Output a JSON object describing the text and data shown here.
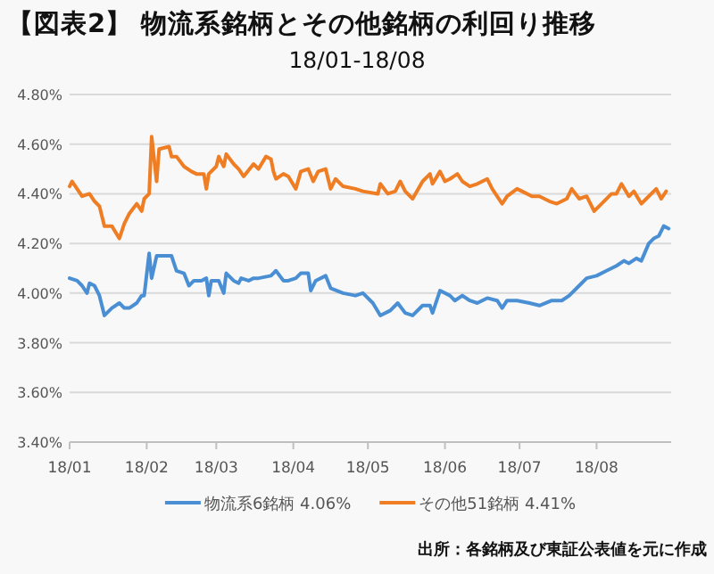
{
  "chart_data": {
    "type": "line",
    "title": "【図表2】 物流系銘柄とその他銘柄の利回り推移",
    "subtitle": "18/01-18/08",
    "annotations": [
      "出所：各銘柄及び東証公表値を元に作成"
    ],
    "xlim": [
      "--01-01",
      "--08-31"
    ],
    "xticks": [
      {
        "value": "--01-01",
        "label": "18/01"
      },
      {
        "value": "--02-01",
        "label": "18/02"
      },
      {
        "value": "--03-01",
        "label": "18/03"
      },
      {
        "value": "--04-01",
        "label": "18/04"
      },
      {
        "value": "--05-01",
        "label": "18/05"
      },
      {
        "value": "--06-01",
        "label": "18/06"
      },
      {
        "value": "--07-01",
        "label": "18/07"
      },
      {
        "value": "--08-01",
        "label": "18/08"
      }
    ],
    "ylim": [
      3.4,
      4.8
    ],
    "yticks": [
      {
        "value": 3.4,
        "label": "3.40%"
      },
      {
        "value": 3.6,
        "label": "3.60%"
      },
      {
        "value": 3.8,
        "label": "3.80%"
      },
      {
        "value": 4.0,
        "label": "4.00%"
      },
      {
        "value": 4.2,
        "label": "4.20%"
      },
      {
        "value": 4.4,
        "label": "4.40%"
      },
      {
        "value": 4.6,
        "label": "4.60%"
      },
      {
        "value": 4.8,
        "label": "4.80%"
      }
    ],
    "grid": "y",
    "legend": "bottom",
    "series": [
      {
        "name": "物流系6銘柄 4.06%",
        "color": "#4a8fd4",
        "x": [
          "--01-01",
          "--01-04",
          "--01-06",
          "--01-08",
          "--01-09",
          "--01-11",
          "--01-13",
          "--01-15",
          "--01-18",
          "--01-21",
          "--01-23",
          "--01-25",
          "--01-28",
          "--01-30",
          "--01-31",
          "--02-02",
          "--02-03",
          "--02-05",
          "--02-07",
          "--02-11",
          "--02-13",
          "--02-16",
          "--02-18",
          "--02-20",
          "--02-23",
          "--02-25",
          "--02-26",
          "--02-27",
          "--03-02",
          "--03-04",
          "--03-05",
          "--03-08",
          "--03-10",
          "--03-11",
          "--03-14",
          "--03-16",
          "--03-18",
          "--03-23",
          "--03-25",
          "--03-28",
          "--03-30",
          "--04-02",
          "--04-04",
          "--04-07",
          "--04-08",
          "--04-10",
          "--04-14",
          "--04-16",
          "--04-21",
          "--04-26",
          "--04-29",
          "--05-03",
          "--05-06",
          "--05-10",
          "--05-13",
          "--05-16",
          "--05-19",
          "--05-23",
          "--05-26",
          "--05-27",
          "--05-30",
          "--06-03",
          "--06-05",
          "--06-08",
          "--06-11",
          "--06-14",
          "--06-18",
          "--06-22",
          "--06-24",
          "--06-26",
          "--06-30",
          "--07-05",
          "--07-09",
          "--07-14",
          "--07-18",
          "--07-21",
          "--07-25",
          "--07-28",
          "--08-01",
          "--08-05",
          "--08-07",
          "--08-09",
          "--08-12",
          "--08-14",
          "--08-17",
          "--08-19",
          "--08-22",
          "--08-24",
          "--08-26",
          "--08-28",
          "--08-30"
        ],
        "values": [
          4.06,
          4.05,
          4.03,
          4.0,
          4.04,
          4.03,
          3.99,
          3.91,
          3.94,
          3.96,
          3.94,
          3.94,
          3.96,
          3.99,
          3.99,
          4.16,
          4.06,
          4.15,
          4.15,
          4.15,
          4.09,
          4.08,
          4.03,
          4.05,
          4.05,
          4.06,
          3.99,
          4.05,
          4.05,
          4.0,
          4.08,
          4.05,
          4.04,
          4.06,
          4.05,
          4.06,
          4.06,
          4.07,
          4.09,
          4.05,
          4.05,
          4.06,
          4.08,
          4.08,
          4.01,
          4.05,
          4.07,
          4.02,
          4.0,
          3.99,
          4.0,
          3.96,
          3.91,
          3.93,
          3.96,
          3.92,
          3.91,
          3.95,
          3.95,
          3.92,
          4.01,
          3.99,
          3.97,
          3.99,
          3.97,
          3.96,
          3.98,
          3.97,
          3.94,
          3.97,
          3.97,
          3.96,
          3.95,
          3.97,
          3.97,
          3.99,
          4.03,
          4.06,
          4.07,
          4.09,
          4.1,
          4.11,
          4.13,
          4.12,
          4.14,
          4.13,
          4.2,
          4.22,
          4.23,
          4.27,
          4.26
        ]
      },
      {
        "name": "その他51銘柄 4.41%",
        "color": "#ee7d24",
        "x": [
          "--01-01",
          "--01-02",
          "--01-04",
          "--01-06",
          "--01-09",
          "--01-11",
          "--01-13",
          "--01-15",
          "--01-18",
          "--01-21",
          "--01-23",
          "--01-25",
          "--01-28",
          "--01-30",
          "--01-31",
          "--02-02",
          "--02-03",
          "--02-05",
          "--02-06",
          "--02-10",
          "--02-11",
          "--02-13",
          "--02-16",
          "--02-19",
          "--02-21",
          "--02-24",
          "--02-25",
          "--02-26",
          "--03-01",
          "--03-02",
          "--03-04",
          "--03-05",
          "--03-08",
          "--03-10",
          "--03-12",
          "--03-16",
          "--03-18",
          "--03-21",
          "--03-23",
          "--03-24",
          "--03-25",
          "--03-28",
          "--03-30",
          "--04-02",
          "--04-04",
          "--04-07",
          "--04-09",
          "--04-11",
          "--04-14",
          "--04-16",
          "--04-18",
          "--04-21",
          "--04-26",
          "--04-29",
          "--05-05",
          "--05-06",
          "--05-09",
          "--05-12",
          "--05-14",
          "--05-16",
          "--05-19",
          "--05-23",
          "--05-26",
          "--05-27",
          "--05-30",
          "--06-01",
          "--06-03",
          "--06-06",
          "--06-08",
          "--06-11",
          "--06-14",
          "--06-18",
          "--06-20",
          "--06-24",
          "--06-26",
          "--06-30",
          "--07-02",
          "--07-06",
          "--07-09",
          "--07-13",
          "--07-16",
          "--07-20",
          "--07-22",
          "--07-25",
          "--07-28",
          "--07-31",
          "--08-03",
          "--08-07",
          "--08-09",
          "--08-11",
          "--08-14",
          "--08-16",
          "--08-19",
          "--08-21",
          "--08-25",
          "--08-27",
          "--08-29"
        ],
        "values": [
          4.43,
          4.45,
          4.42,
          4.39,
          4.4,
          4.37,
          4.35,
          4.27,
          4.27,
          4.22,
          4.28,
          4.32,
          4.36,
          4.33,
          4.38,
          4.4,
          4.63,
          4.45,
          4.58,
          4.59,
          4.55,
          4.55,
          4.51,
          4.49,
          4.48,
          4.48,
          4.42,
          4.48,
          4.51,
          4.55,
          4.51,
          4.56,
          4.52,
          4.5,
          4.47,
          4.52,
          4.5,
          4.55,
          4.54,
          4.49,
          4.46,
          4.48,
          4.47,
          4.42,
          4.49,
          4.5,
          4.45,
          4.49,
          4.5,
          4.42,
          4.46,
          4.43,
          4.42,
          4.41,
          4.4,
          4.44,
          4.4,
          4.41,
          4.45,
          4.41,
          4.38,
          4.45,
          4.48,
          4.44,
          4.49,
          4.45,
          4.46,
          4.48,
          4.45,
          4.43,
          4.44,
          4.46,
          4.42,
          4.36,
          4.39,
          4.42,
          4.41,
          4.39,
          4.39,
          4.37,
          4.36,
          4.38,
          4.42,
          4.38,
          4.39,
          4.33,
          4.36,
          4.4,
          4.4,
          4.44,
          4.39,
          4.41,
          4.36,
          4.38,
          4.42,
          4.38,
          4.41
        ]
      }
    ]
  }
}
